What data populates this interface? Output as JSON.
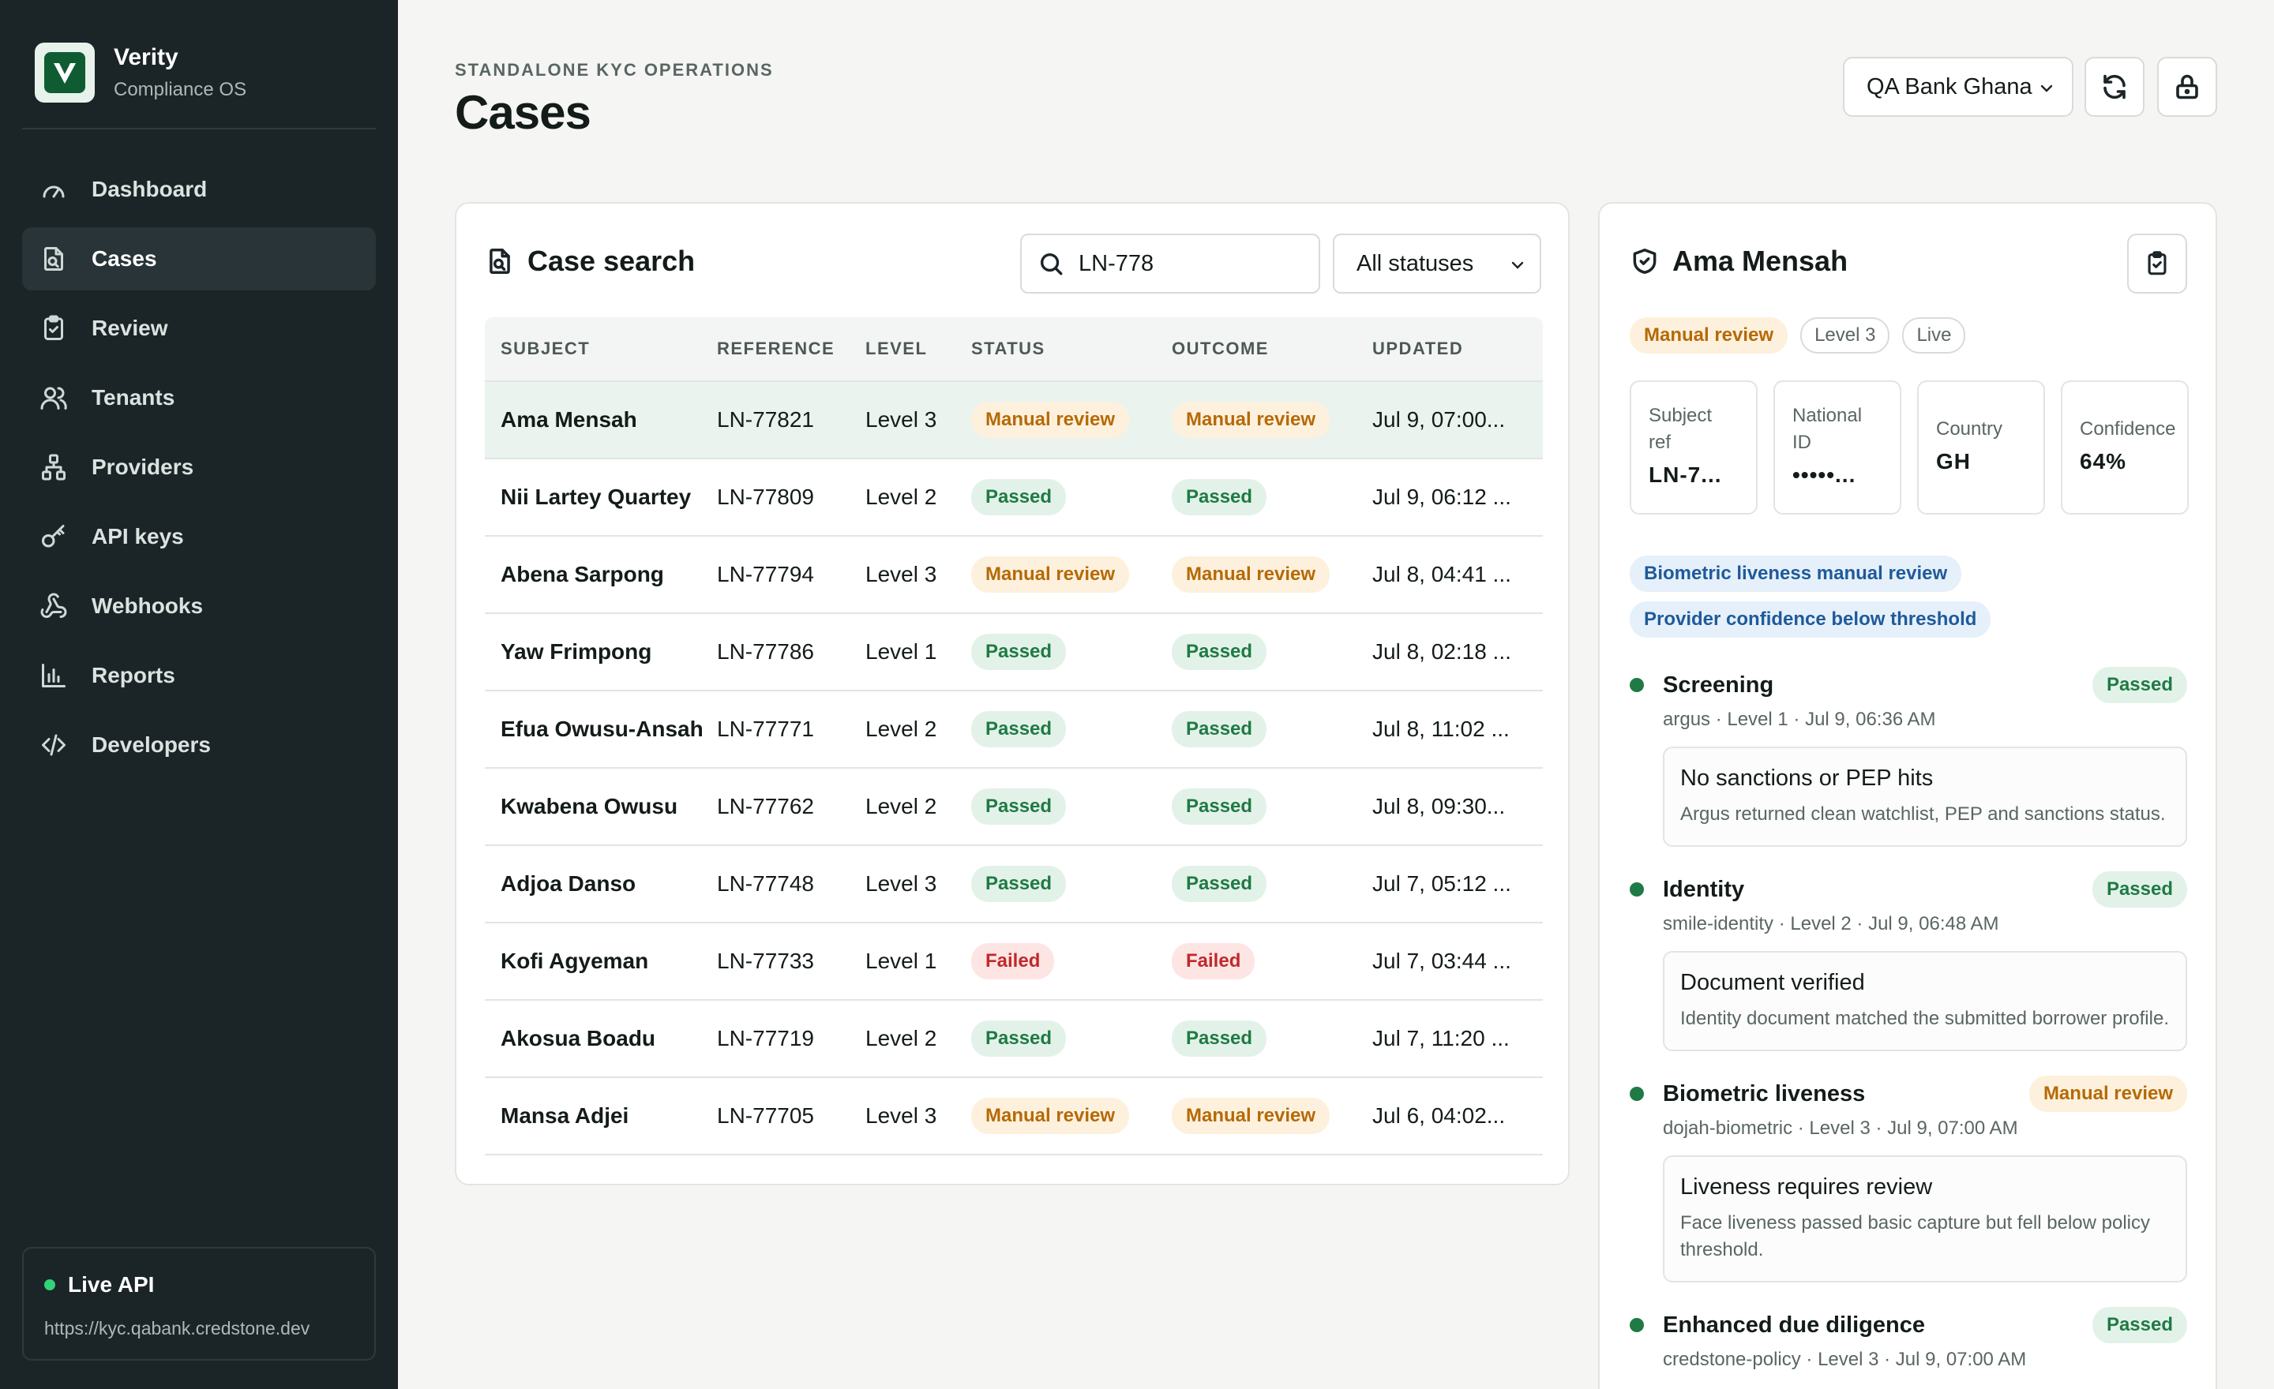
{
  "brand": {
    "name": "Verity",
    "subtitle": "Compliance OS"
  },
  "nav": [
    {
      "label": "Dashboard",
      "icon": "gauge-icon",
      "active": false
    },
    {
      "label": "Cases",
      "icon": "file-search-icon",
      "active": true
    },
    {
      "label": "Review",
      "icon": "clipboard-check-icon",
      "active": false
    },
    {
      "label": "Tenants",
      "icon": "users-icon",
      "active": false
    },
    {
      "label": "Providers",
      "icon": "network-icon",
      "active": false
    },
    {
      "label": "API keys",
      "icon": "key-icon",
      "active": false
    },
    {
      "label": "Webhooks",
      "icon": "webhook-icon",
      "active": false
    },
    {
      "label": "Reports",
      "icon": "bar-chart-icon",
      "active": false
    },
    {
      "label": "Developers",
      "icon": "code-icon",
      "active": false
    }
  ],
  "api": {
    "title": "Live API",
    "url": "https://kyc.qabank.credstone.dev"
  },
  "header": {
    "eyebrow": "STANDALONE KYC OPERATIONS",
    "title": "Cases",
    "tenant": "QA Bank Ghana"
  },
  "search": {
    "title": "Case search",
    "query": "LN-778",
    "status_filter": "All statuses",
    "columns": [
      "SUBJECT",
      "REFERENCE",
      "LEVEL",
      "STATUS",
      "OUTCOME",
      "UPDATED"
    ],
    "rows": [
      {
        "subject": "Ama Mensah",
        "reference": "LN-77821",
        "level": "Level 3",
        "status": "Manual review",
        "outcome": "Manual review",
        "updated": "Jul 9, 07:00...",
        "selected": true
      },
      {
        "subject": "Nii Lartey Quartey",
        "reference": "LN-77809",
        "level": "Level 2",
        "status": "Passed",
        "outcome": "Passed",
        "updated": "Jul 9, 06:12 ..."
      },
      {
        "subject": "Abena Sarpong",
        "reference": "LN-77794",
        "level": "Level 3",
        "status": "Manual review",
        "outcome": "Manual review",
        "updated": "Jul 8, 04:41 ..."
      },
      {
        "subject": "Yaw Frimpong",
        "reference": "LN-77786",
        "level": "Level 1",
        "status": "Passed",
        "outcome": "Passed",
        "updated": "Jul 8, 02:18 ..."
      },
      {
        "subject": "Efua Owusu-Ansah",
        "reference": "LN-77771",
        "level": "Level 2",
        "status": "Passed",
        "outcome": "Passed",
        "updated": "Jul 8, 11:02 ..."
      },
      {
        "subject": "Kwabena Owusu",
        "reference": "LN-77762",
        "level": "Level 2",
        "status": "Passed",
        "outcome": "Passed",
        "updated": "Jul 8, 09:30..."
      },
      {
        "subject": "Adjoa Danso",
        "reference": "LN-77748",
        "level": "Level 3",
        "status": "Passed",
        "outcome": "Passed",
        "updated": "Jul 7, 05:12 ..."
      },
      {
        "subject": "Kofi Agyeman",
        "reference": "LN-77733",
        "level": "Level 1",
        "status": "Failed",
        "outcome": "Failed",
        "updated": "Jul 7, 03:44 ..."
      },
      {
        "subject": "Akosua Boadu",
        "reference": "LN-77719",
        "level": "Level 2",
        "status": "Passed",
        "outcome": "Passed",
        "updated": "Jul 7, 11:20 ..."
      },
      {
        "subject": "Mansa Adjei",
        "reference": "LN-77705",
        "level": "Level 3",
        "status": "Manual review",
        "outcome": "Manual review",
        "updated": "Jul 6, 04:02..."
      }
    ]
  },
  "detail": {
    "name": "Ama Mensah",
    "tags": [
      "Manual review",
      "Level 3",
      "Live"
    ],
    "stats": [
      {
        "label": "Subject ref",
        "value": "LN-7..."
      },
      {
        "label": "National ID",
        "value": "•••••..."
      },
      {
        "label": "Country",
        "value": "GH"
      },
      {
        "label": "Confidence",
        "value": "64%"
      }
    ],
    "flags": [
      "Biometric liveness manual review",
      "Provider confidence below threshold"
    ],
    "steps": [
      {
        "name": "Screening",
        "badge": "Passed",
        "meta": "argus · Level 1 · Jul 9, 06:36 AM",
        "box_title": "No sanctions or PEP hits",
        "box_text": "Argus returned clean watchlist, PEP and sanctions status."
      },
      {
        "name": "Identity",
        "badge": "Passed",
        "meta": "smile-identity · Level 2 · Jul 9, 06:48 AM",
        "box_title": "Document verified",
        "box_text": "Identity document matched the submitted borrower profile."
      },
      {
        "name": "Biometric liveness",
        "badge": "Manual review",
        "meta": "dojah-biometric · Level 3 · Jul 9, 07:00 AM",
        "box_title": "Liveness requires review",
        "box_text": "Face liveness passed basic capture but fell below policy threshold."
      },
      {
        "name": "Enhanced due diligence",
        "badge": "Passed",
        "meta": "credstone-policy · Level 3 · Jul 9, 07:00 AM",
        "box_title": "",
        "box_text": ""
      }
    ]
  },
  "colors": {
    "sidebar": "#1b2528",
    "accent": "#1f7a45",
    "review": "#b56a07",
    "failed": "#c0292a"
  }
}
